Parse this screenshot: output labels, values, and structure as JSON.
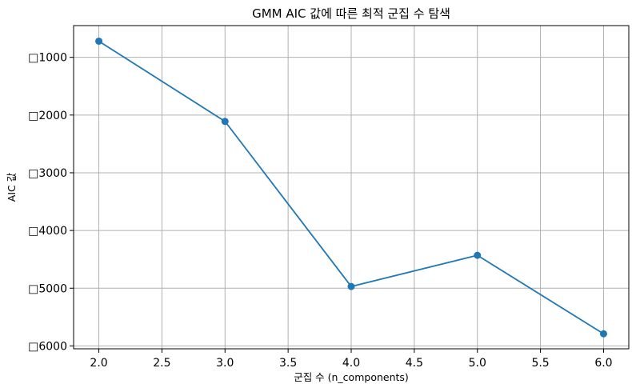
{
  "chart_data": {
    "type": "line",
    "title": "GMM AIC 값에 따른 최적 군집 수 탐색",
    "xlabel": "군집 수 (n_components)",
    "ylabel": "AIC 값",
    "x": [
      2,
      3,
      4,
      5,
      6
    ],
    "series": [
      {
        "values": [
          -720,
          -2110,
          -4970,
          -4430,
          -5790
        ],
        "color": "#1f77b4",
        "marker": "circle"
      }
    ],
    "xlim": [
      1.8,
      6.2
    ],
    "ylim": [
      -6050,
      -450
    ],
    "xticks": [
      {
        "value": 2.0,
        "label": "2.0"
      },
      {
        "value": 2.5,
        "label": "2.5"
      },
      {
        "value": 3.0,
        "label": "3.0"
      },
      {
        "value": 3.5,
        "label": "3.5"
      },
      {
        "value": 4.0,
        "label": "4.0"
      },
      {
        "value": 4.5,
        "label": "4.5"
      },
      {
        "value": 5.0,
        "label": "5.0"
      },
      {
        "value": 5.5,
        "label": "5.5"
      },
      {
        "value": 6.0,
        "label": "6.0"
      }
    ],
    "yticks": [
      {
        "value": -1000,
        "label": "□1000"
      },
      {
        "value": -2000,
        "label": "□2000"
      },
      {
        "value": -3000,
        "label": "□3000"
      },
      {
        "value": -4000,
        "label": "□4000"
      },
      {
        "value": -5000,
        "label": "□5000"
      },
      {
        "value": -6000,
        "label": "□6000"
      }
    ],
    "grid": true,
    "legend": "none"
  }
}
